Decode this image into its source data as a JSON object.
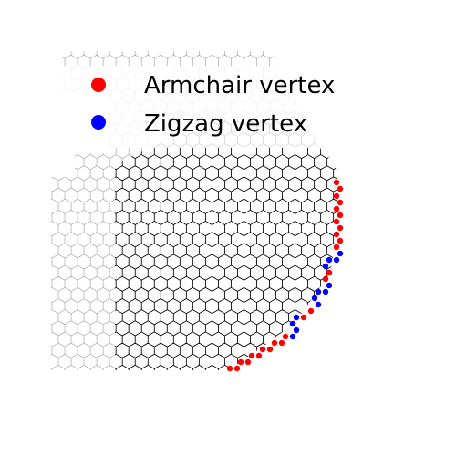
{
  "legend": {
    "entries": [
      {
        "label": "Armchair vertex",
        "color": "#ff0000"
      },
      {
        "label": "Zigzag vertex",
        "color": "#0000ff"
      }
    ]
  },
  "lattice": {
    "type": "honeycomb",
    "cell_color_outer": "#aaaaaa",
    "cell_color_inner": "#000000",
    "background": "#ffffff"
  },
  "edge_vertices": {
    "armchair_color": "#ff0000",
    "zigzag_color": "#0000ff"
  }
}
